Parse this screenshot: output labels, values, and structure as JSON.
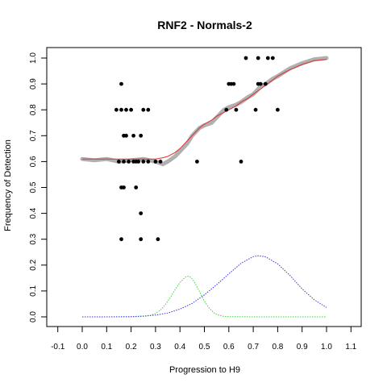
{
  "chart_data": {
    "type": "scatter",
    "title": "RNF2 - Normals-2",
    "xlabel": "Progression to H9",
    "ylabel": "Frequency of Detection",
    "xlim": [
      -0.1,
      1.1
    ],
    "ylim": [
      0.0,
      1.0
    ],
    "x_ticks": [
      "-0.1",
      "0.0",
      "0.1",
      "0.2",
      "0.3",
      "0.4",
      "0.5",
      "0.6",
      "0.7",
      "0.8",
      "0.9",
      "1.0",
      "1.1"
    ],
    "y_ticks": [
      "0.0",
      "0.1",
      "0.2",
      "0.3",
      "0.4",
      "0.5",
      "0.6",
      "0.7",
      "0.8",
      "0.9",
      "1.0"
    ],
    "grid": false,
    "colors": {
      "points": "#000000",
      "smoothed": "#b0b0b0",
      "fit": "#e03030",
      "density_green": "#33dd33",
      "density_blue": "#3333dd"
    },
    "observed_points": [
      [
        0.16,
        0.9
      ],
      [
        0.14,
        0.8
      ],
      [
        0.16,
        0.8
      ],
      [
        0.18,
        0.8
      ],
      [
        0.2,
        0.8
      ],
      [
        0.25,
        0.8
      ],
      [
        0.27,
        0.8
      ],
      [
        0.17,
        0.7
      ],
      [
        0.18,
        0.7
      ],
      [
        0.21,
        0.7
      ],
      [
        0.24,
        0.7
      ],
      [
        0.15,
        0.6
      ],
      [
        0.17,
        0.6
      ],
      [
        0.19,
        0.6
      ],
      [
        0.21,
        0.6
      ],
      [
        0.22,
        0.6
      ],
      [
        0.23,
        0.6
      ],
      [
        0.25,
        0.6
      ],
      [
        0.27,
        0.6
      ],
      [
        0.3,
        0.6
      ],
      [
        0.32,
        0.6
      ],
      [
        0.16,
        0.5
      ],
      [
        0.17,
        0.5
      ],
      [
        0.22,
        0.5
      ],
      [
        0.24,
        0.4
      ],
      [
        0.16,
        0.3
      ],
      [
        0.24,
        0.3
      ],
      [
        0.31,
        0.3
      ],
      [
        0.47,
        0.6
      ],
      [
        0.65,
        0.6
      ],
      [
        0.6,
        0.9
      ],
      [
        0.61,
        0.9
      ],
      [
        0.62,
        0.9
      ],
      [
        0.72,
        0.9
      ],
      [
        0.73,
        0.9
      ],
      [
        0.75,
        0.9
      ],
      [
        0.59,
        0.8
      ],
      [
        0.63,
        0.8
      ],
      [
        0.71,
        0.8
      ],
      [
        0.8,
        0.8
      ],
      [
        0.67,
        1.0
      ],
      [
        0.72,
        1.0
      ],
      [
        0.76,
        1.0
      ],
      [
        0.78,
        1.0
      ]
    ],
    "smoothed_x": [
      0.0,
      0.05,
      0.1,
      0.15,
      0.2,
      0.25,
      0.3,
      0.33,
      0.35,
      0.38,
      0.4,
      0.43,
      0.45,
      0.48,
      0.5,
      0.53,
      0.55,
      0.58,
      0.6,
      0.63,
      0.65,
      0.68,
      0.7,
      0.73,
      0.75,
      0.78,
      0.8,
      0.85,
      0.9,
      0.95,
      1.0
    ],
    "smoothed_y": [
      0.61,
      0.605,
      0.61,
      0.6,
      0.605,
      0.61,
      0.6,
      0.59,
      0.6,
      0.62,
      0.64,
      0.67,
      0.7,
      0.73,
      0.74,
      0.75,
      0.77,
      0.8,
      0.81,
      0.82,
      0.83,
      0.85,
      0.86,
      0.89,
      0.9,
      0.92,
      0.93,
      0.96,
      0.98,
      0.995,
      1.0
    ],
    "fit_x": [
      0.0,
      0.05,
      0.1,
      0.15,
      0.2,
      0.25,
      0.3,
      0.33,
      0.35,
      0.38,
      0.4,
      0.43,
      0.45,
      0.48,
      0.5,
      0.53,
      0.55,
      0.58,
      0.6,
      0.63,
      0.65,
      0.68,
      0.7,
      0.73,
      0.75,
      0.78,
      0.8,
      0.85,
      0.9,
      0.95,
      1.0
    ],
    "fit_y": [
      0.61,
      0.61,
      0.61,
      0.61,
      0.61,
      0.61,
      0.61,
      0.615,
      0.62,
      0.635,
      0.65,
      0.68,
      0.7,
      0.73,
      0.745,
      0.76,
      0.775,
      0.79,
      0.8,
      0.815,
      0.83,
      0.845,
      0.86,
      0.88,
      0.895,
      0.915,
      0.93,
      0.955,
      0.975,
      0.99,
      0.995
    ],
    "density_green_x": [
      0.0,
      0.1,
      0.2,
      0.25,
      0.28,
      0.3,
      0.32,
      0.34,
      0.36,
      0.38,
      0.4,
      0.42,
      0.43,
      0.44,
      0.45,
      0.46,
      0.48,
      0.5,
      0.52,
      0.54,
      0.56,
      0.58,
      0.6,
      0.7,
      0.8,
      1.0
    ],
    "density_green_y": [
      0.0,
      0.0,
      0.0,
      0.002,
      0.006,
      0.013,
      0.026,
      0.047,
      0.074,
      0.105,
      0.133,
      0.152,
      0.157,
      0.155,
      0.147,
      0.133,
      0.098,
      0.061,
      0.033,
      0.015,
      0.006,
      0.002,
      0.001,
      0.0,
      0.0,
      0.0
    ],
    "density_blue_x": [
      0.0,
      0.1,
      0.2,
      0.25,
      0.3,
      0.35,
      0.4,
      0.45,
      0.5,
      0.55,
      0.6,
      0.65,
      0.7,
      0.72,
      0.75,
      0.8,
      0.85,
      0.9,
      0.95,
      1.0
    ],
    "density_blue_y": [
      0.0,
      0.0,
      0.001,
      0.003,
      0.007,
      0.015,
      0.03,
      0.052,
      0.085,
      0.124,
      0.166,
      0.207,
      0.233,
      0.236,
      0.232,
      0.205,
      0.16,
      0.108,
      0.066,
      0.036
    ]
  }
}
